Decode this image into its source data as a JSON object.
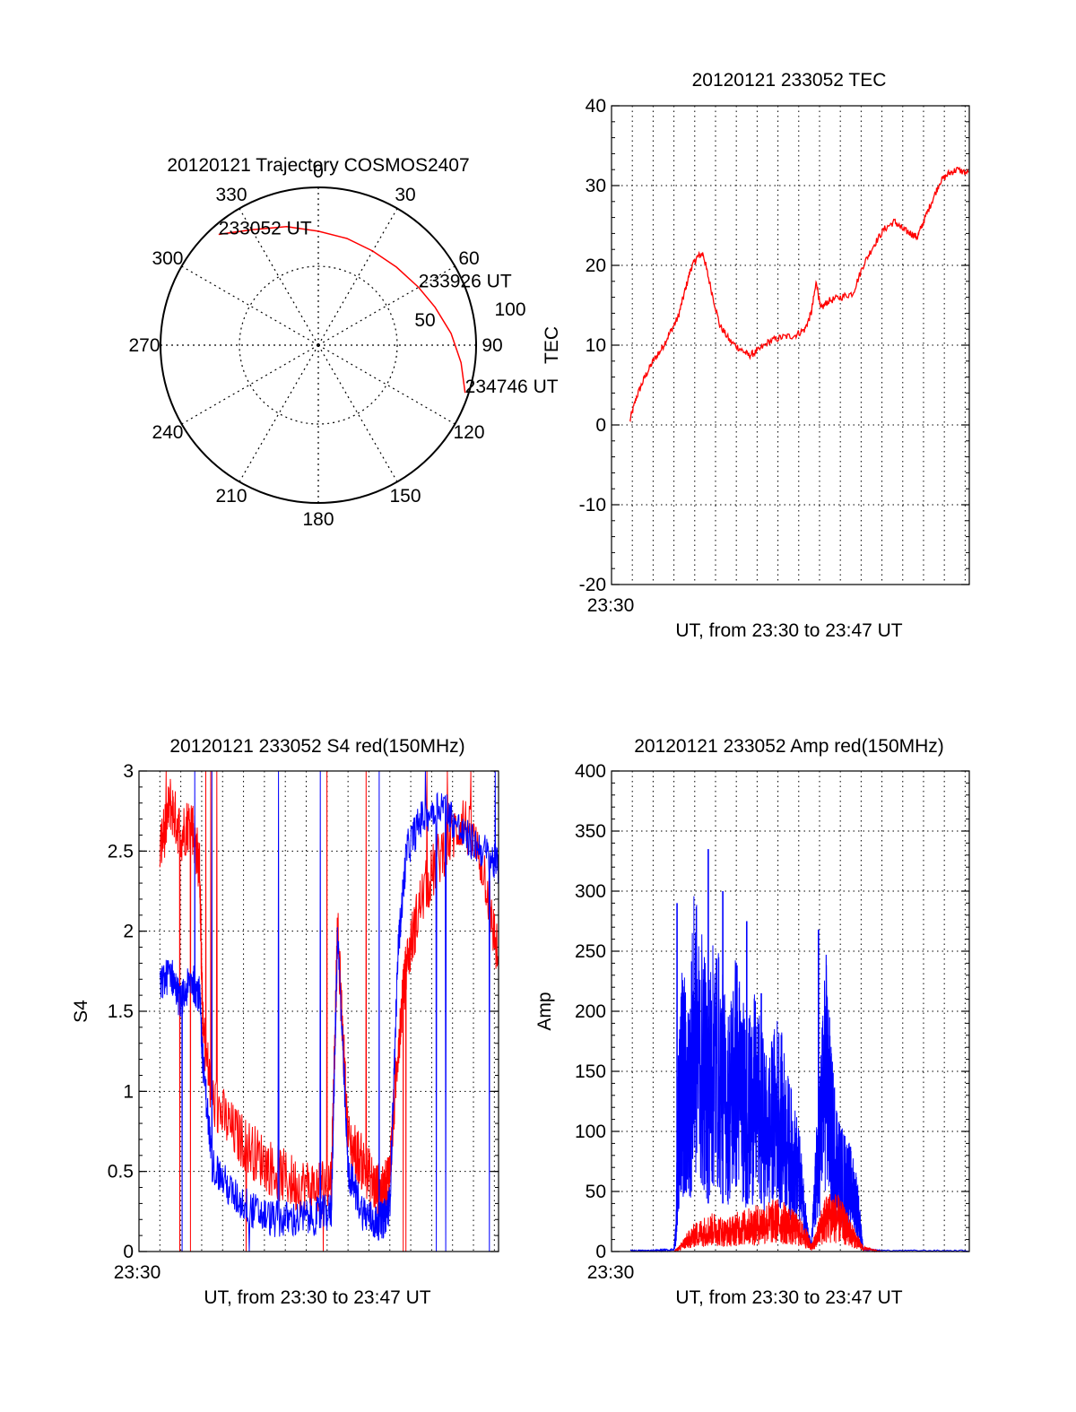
{
  "colors": {
    "red": "#ff0000",
    "blue": "#0000ff",
    "axis": "#000000",
    "grid": "#000000"
  },
  "chart_data": [
    {
      "id": "trajectory",
      "type": "polar-trajectory",
      "title": "20120121 Trajectory COSMOS2407",
      "grid": true,
      "azimuth_labels": [
        "0",
        "30",
        "60",
        "90",
        "120",
        "150",
        "180",
        "210",
        "240",
        "270",
        "300",
        "330"
      ],
      "ring_labels": [
        "50",
        "100"
      ],
      "series": [
        {
          "color": "#ff0000",
          "points": [
            {
              "az": 318,
              "el": 5
            },
            {
              "az": 330,
              "el": 14
            },
            {
              "az": 345,
              "el": 20
            },
            {
              "az": 0,
              "el": 25
            },
            {
              "az": 15,
              "el": 27
            },
            {
              "az": 30,
              "el": 28
            },
            {
              "az": 45,
              "el": 27
            },
            {
              "az": 60,
              "el": 24
            },
            {
              "az": 72,
              "el": 20
            },
            {
              "az": 85,
              "el": 14
            },
            {
              "az": 97,
              "el": 8
            },
            {
              "az": 108,
              "el": 2
            }
          ]
        }
      ],
      "annotations": [
        {
          "text": "233052 UT",
          "az": 318,
          "el": 5
        },
        {
          "text": "233926 UT",
          "az": 60,
          "el": 24
        },
        {
          "text": "234746 UT",
          "az": 108,
          "el": 2
        }
      ]
    },
    {
      "id": "tec",
      "type": "line",
      "title": "20120121 233052 TEC",
      "xlabel": "UT, from 23:30 to 23:47 UT",
      "ylabel": "TEC",
      "x_tick_label": "23:30",
      "xlim": [
        0,
        17.2
      ],
      "ylim": [
        -20,
        40
      ],
      "yticks": [
        -20,
        -10,
        0,
        10,
        20,
        30,
        40
      ],
      "grid": true,
      "series": [
        {
          "color": "#ff0000",
          "x": [
            0.88,
            1.2,
            1.6,
            2.0,
            2.4,
            2.8,
            3.2,
            3.5,
            3.8,
            4.1,
            4.4,
            4.7,
            5.2,
            5.7,
            6.2,
            6.6,
            7.0,
            7.6,
            8.2,
            8.8,
            9.3,
            9.6,
            9.85,
            10.05,
            10.4,
            11.0,
            11.6,
            12.1,
            12.6,
            13.1,
            13.6,
            14.0,
            14.4,
            14.7,
            15.0,
            15.4,
            15.8,
            16.2,
            16.6,
            17.2
          ],
          "values": [
            0.5,
            3.5,
            6.0,
            8.0,
            9.5,
            11.5,
            13.5,
            16.5,
            19.5,
            21.0,
            21.5,
            18.0,
            12.5,
            10.5,
            9.5,
            8.7,
            9.2,
            10.5,
            11.0,
            11.2,
            12.0,
            14.0,
            18.0,
            14.5,
            15.5,
            16.0,
            16.5,
            20.0,
            22.5,
            24.5,
            25.5,
            24.5,
            24.0,
            23.5,
            25.5,
            28.0,
            30.5,
            31.5,
            32.0,
            31.5
          ]
        }
      ]
    },
    {
      "id": "s4",
      "type": "line",
      "title": "20120121 233052 S4 red(150MHz)",
      "xlabel": "UT, from 23:30 to 23:47 UT",
      "ylabel": "S4",
      "x_tick_label": "23:30",
      "xlim": [
        0,
        17.2
      ],
      "ylim": [
        0,
        3
      ],
      "yticks": [
        0,
        0.5,
        1,
        1.5,
        2,
        2.5,
        3
      ],
      "ytick_labels": [
        "0",
        "0.5",
        "1",
        "1.5",
        "2",
        "2.5",
        "3"
      ],
      "grid": true,
      "series": [
        {
          "color": "#ff0000",
          "x": [
            1.0,
            1.5,
            2.0,
            2.5,
            2.9,
            3.05,
            3.5,
            4.5,
            5.5,
            6.5,
            7.5,
            8.5,
            9.2,
            9.5,
            10.0,
            10.7,
            11.3,
            11.7,
            12.0,
            12.4,
            12.8,
            13.5,
            14.5,
            15.5,
            16.5,
            17.2
          ],
          "values": [
            2.5,
            2.8,
            2.6,
            2.7,
            2.4,
            1.4,
            0.95,
            0.75,
            0.62,
            0.5,
            0.42,
            0.4,
            0.45,
            2.0,
            0.7,
            0.55,
            0.4,
            0.35,
            0.5,
            1.3,
            1.8,
            2.2,
            2.5,
            2.7,
            2.4,
            1.8
          ]
        },
        {
          "color": "#0000ff",
          "x": [
            1.0,
            1.5,
            2.0,
            2.5,
            2.9,
            3.05,
            3.5,
            4.5,
            5.5,
            6.5,
            7.5,
            8.5,
            9.2,
            9.5,
            10.0,
            10.7,
            11.3,
            11.7,
            12.0,
            12.4,
            12.8,
            13.5,
            14.5,
            15.5,
            16.5,
            17.2
          ],
          "values": [
            1.65,
            1.75,
            1.55,
            1.7,
            1.6,
            1.2,
            0.55,
            0.35,
            0.25,
            0.2,
            0.2,
            0.22,
            0.25,
            2.0,
            0.5,
            0.25,
            0.18,
            0.2,
            0.3,
            1.9,
            2.5,
            2.7,
            2.8,
            2.6,
            2.5,
            2.4
          ]
        }
      ]
    },
    {
      "id": "amp",
      "type": "line",
      "title": "20120121 233052 Amp red(150MHz)",
      "xlabel": "UT, from 23:30 to 23:47 UT",
      "ylabel": "Amp",
      "x_tick_label": "23:30",
      "xlim": [
        0,
        17.2
      ],
      "ylim": [
        0,
        400
      ],
      "yticks": [
        0,
        50,
        100,
        150,
        200,
        250,
        300,
        350,
        400
      ],
      "grid": true,
      "series": [
        {
          "color": "#0000ff",
          "x": [
            0.9,
            2.0,
            3.0,
            3.1,
            3.2,
            3.4,
            3.7,
            4.0,
            4.6,
            5.0,
            5.6,
            6.0,
            6.5,
            6.9,
            7.5,
            8.0,
            8.5,
            9.0,
            9.4,
            9.6,
            9.9,
            10.3,
            10.6,
            11.0,
            11.4,
            11.8,
            12.1,
            13.0,
            17.2
          ],
          "values": [
            1,
            1,
            2,
            20,
            120,
            180,
            150,
            230,
            170,
            200,
            150,
            190,
            140,
            160,
            120,
            150,
            110,
            80,
            20,
            5,
            90,
            190,
            120,
            80,
            70,
            50,
            2,
            1,
            1
          ],
          "peaks": [
            {
              "x": 3.15,
              "value": 290
            },
            {
              "x": 4.65,
              "value": 335
            },
            {
              "x": 5.35,
              "value": 300
            },
            {
              "x": 6.5,
              "value": 275
            },
            {
              "x": 7.2,
              "value": 215
            },
            {
              "x": 9.95,
              "value": 268
            }
          ]
        },
        {
          "color": "#ff0000",
          "x": [
            0.9,
            3.0,
            3.3,
            3.6,
            4.0,
            4.5,
            5.0,
            5.5,
            6.0,
            6.5,
            7.0,
            7.5,
            8.0,
            8.5,
            9.0,
            9.4,
            9.6,
            9.8,
            10.2,
            10.6,
            11.0,
            11.4,
            11.8,
            12.1,
            13.0,
            17.2
          ],
          "values": [
            0,
            0,
            4,
            10,
            16,
            20,
            22,
            18,
            22,
            24,
            26,
            28,
            30,
            26,
            20,
            12,
            4,
            10,
            30,
            35,
            30,
            20,
            10,
            3,
            0,
            0
          ]
        }
      ]
    }
  ]
}
